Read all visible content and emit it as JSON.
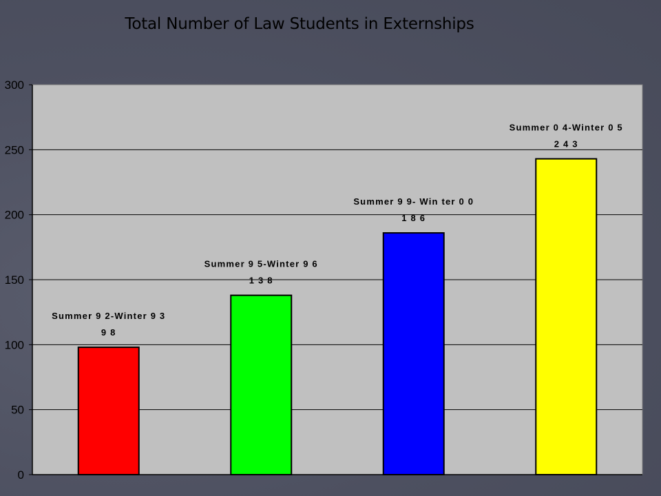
{
  "chart_data": {
    "type": "bar",
    "title": "Total Number of Law Students in Externships",
    "xlabel": "",
    "ylabel": "",
    "categories": [
      "Summer 92-Winter 93",
      "Summer 95-Winter 96",
      "Summer 99- Winter 00",
      "Summer 04-Winter 05"
    ],
    "category_labels": [
      "Summer 9 2-Winter 9 3",
      "Summer 9 5-Winter 9 6",
      "Summer 9 9- Win ter 0 0",
      "Summer 0 4-Winter 0 5"
    ],
    "value_labels": [
      "9 8",
      "1 3 8",
      "1 8 6",
      "2 4 3"
    ],
    "values": [
      98,
      138,
      186,
      243
    ],
    "colors": [
      "#ff0000",
      "#00ff00",
      "#0000ff",
      "#ffff00"
    ],
    "ylim": [
      0,
      300
    ],
    "yticks": [
      "0",
      "50",
      "100",
      "150",
      "200",
      "250",
      "300"
    ],
    "grid": true,
    "plot_background": "#c0c0c0",
    "legend": "none"
  }
}
